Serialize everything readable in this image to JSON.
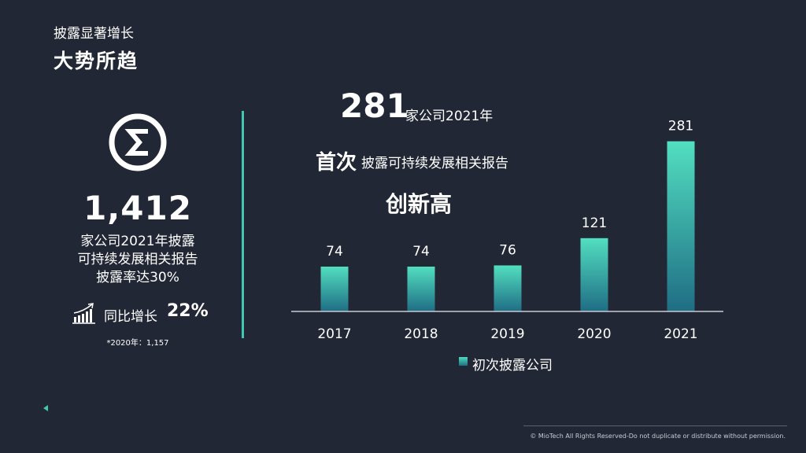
{
  "header": {
    "subtitle": "披露显著增长",
    "title": "大势所趋"
  },
  "left_panel": {
    "icon": "sigma-circle-icon",
    "big_number": "1,412",
    "desc_lines": [
      "家公司2021年披露",
      "可持续发展相关报告",
      "披露率达30%"
    ],
    "growth_icon": "bar-growth-icon",
    "growth_label": "同比增长",
    "growth_value": "22%",
    "footnote": "*2020年：1,157"
  },
  "headline": {
    "number": "281",
    "number_suffix": "家公司2021年",
    "first": "首次",
    "first_rest": "披露可持续发展相关报告",
    "record": "创新高"
  },
  "chart_data": {
    "type": "bar",
    "categories": [
      "2017",
      "2018",
      "2019",
      "2020",
      "2021"
    ],
    "series": [
      {
        "name": "初次披露公司",
        "values": [
          74,
          74,
          76,
          121,
          281
        ]
      }
    ],
    "data_labels": [
      "74",
      "74",
      "76",
      "121",
      "281"
    ],
    "ylim": [
      0,
      300
    ],
    "grid": false,
    "legend": "bottom-center",
    "colors": {
      "bar_top": "#52dfc0",
      "bar_bottom": "#1f6d84"
    }
  },
  "legend": {
    "label": "初次披露公司"
  },
  "footer": {
    "copyright": "© MioTech All Rights Reserved-Do not duplicate or distribute without permission."
  },
  "colors": {
    "background": "#212734",
    "accent": "#40c9b2",
    "text": "#ffffff"
  }
}
